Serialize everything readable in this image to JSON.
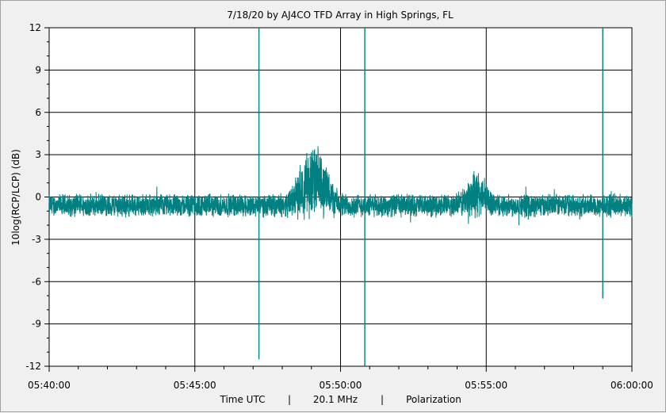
{
  "chart_data": {
    "type": "line",
    "title": "7/18/20  by  AJ4CO TFD Array  in  High Springs, FL",
    "ylabel": "10log(RCP/LCP) (dB)",
    "xlabel_parts": [
      "Time UTC",
      "|",
      "20.1 MHz",
      "|",
      "Polarization"
    ],
    "ylim": [
      -12,
      12
    ],
    "yticks": [
      12,
      9,
      6,
      3,
      0,
      -3,
      -6,
      -9,
      -12
    ],
    "yticklabels": [
      "12",
      "9",
      "6",
      "3",
      "0",
      "-3",
      "-6",
      "-9",
      "-12"
    ],
    "xlim": [
      "05:40:00",
      "06:00:00"
    ],
    "xticklabels": [
      "05:40:00",
      "05:45:00",
      "05:50:00",
      "05:55:00",
      "06:00:00"
    ],
    "grid": true,
    "line_color": "#008080",
    "series": [
      {
        "spikes": [
          {
            "time": "05:47:12",
            "low": -11.5,
            "high": 12
          },
          {
            "time": "05:50:50",
            "low": -12,
            "high": 12
          },
          {
            "time": "05:59:00",
            "low": -7.2,
            "high": 12
          }
        ],
        "features": [
          {
            "time": "05:48:50",
            "peak": 2.8
          },
          {
            "time": "05:49:20",
            "peak": 2.5
          },
          {
            "time": "05:54:40",
            "peak": 1.8
          }
        ],
        "baseline": {
          "mean": -0.6,
          "spread": 0.9
        }
      }
    ]
  }
}
